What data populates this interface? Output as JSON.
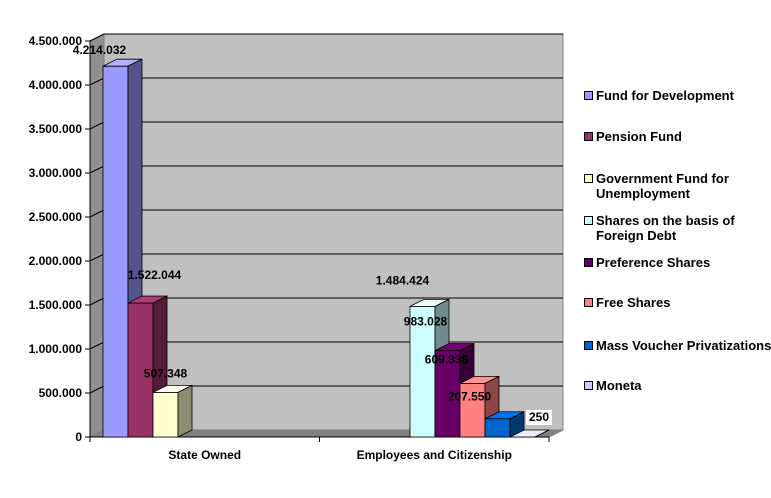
{
  "chart_data": {
    "type": "bar",
    "categories": [
      "State Owned",
      "Employees and Citizenship"
    ],
    "ylim": [
      0,
      4500000
    ],
    "yticks": [
      "0",
      "500.000",
      "1.000.000",
      "1.500.000",
      "2.000.000",
      "2.500.000",
      "3.000.000",
      "3.500.000",
      "4.000.000",
      "4.500.000"
    ],
    "grid": true,
    "legend_position": "right",
    "series": [
      {
        "name": "Fund for Development",
        "color": "#9999ff",
        "values": [
          4214032,
          null
        ],
        "labels": [
          "4.214.032",
          ""
        ]
      },
      {
        "name": "Pension Fund",
        "color": "#993366",
        "values": [
          1522044,
          null
        ],
        "labels": [
          "1.522.044",
          ""
        ]
      },
      {
        "name": "Government Fund for Unemployment",
        "color": "#ffffcc",
        "values": [
          507348,
          null
        ],
        "labels": [
          "507.348",
          ""
        ]
      },
      {
        "name": "Shares on the basis of Foreign Debt",
        "color": "#ccffff",
        "values": [
          null,
          1484424
        ],
        "labels": [
          "",
          "1.484.424"
        ]
      },
      {
        "name": "Preference Shares",
        "color": "#660066",
        "values": [
          null,
          983028
        ],
        "labels": [
          "",
          "983.028"
        ]
      },
      {
        "name": "Free Shares",
        "color": "#ff8080",
        "values": [
          null,
          609336
        ],
        "labels": [
          "",
          "609.336"
        ]
      },
      {
        "name": "Mass Voucher Privatizations",
        "color": "#0066cc",
        "values": [
          null,
          207550
        ],
        "labels": [
          "",
          "207.550"
        ]
      },
      {
        "name": "Moneta",
        "color": "#ccccff",
        "values": [
          null,
          250
        ],
        "labels": [
          "",
          "250"
        ]
      }
    ]
  }
}
